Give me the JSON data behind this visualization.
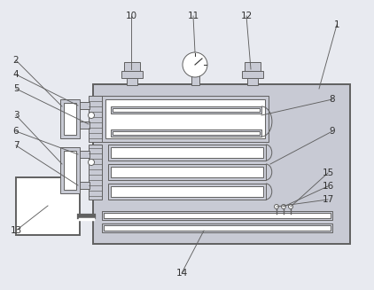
{
  "bg_color": "#e8eaf0",
  "line_color": "#606060",
  "fill_color": "#c8cad4",
  "white": "#ffffff",
  "dark": "#303030",
  "figsize": [
    4.22,
    3.27
  ],
  "dpi": 100
}
